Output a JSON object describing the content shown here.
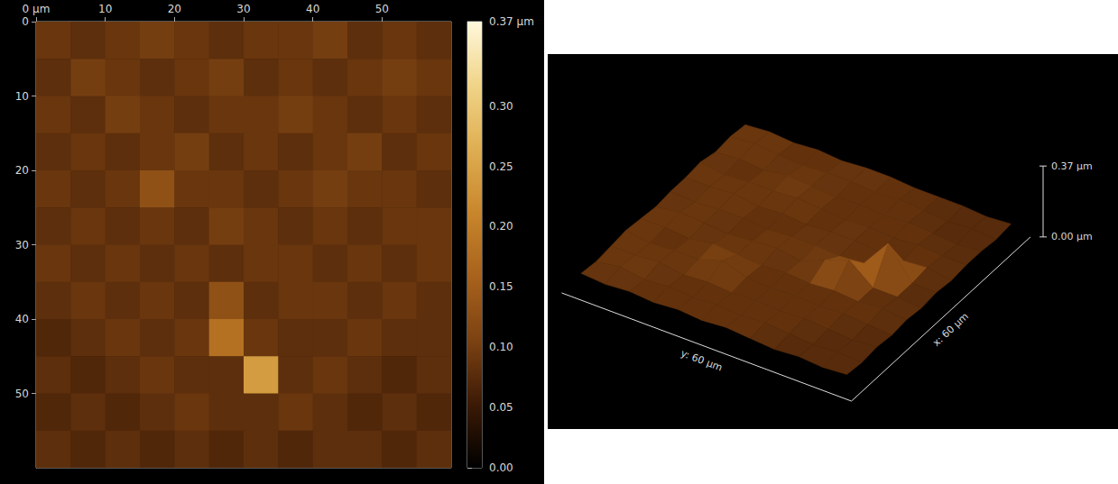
{
  "chart_data": [
    {
      "type": "heatmap",
      "x": [
        2.5,
        7.5,
        12.5,
        17.5,
        22.5,
        27.5,
        32.5,
        37.5,
        42.5,
        47.5,
        52.5,
        57.5
      ],
      "y": [
        2.5,
        7.5,
        12.5,
        17.5,
        22.5,
        27.5,
        32.5,
        37.5,
        42.5,
        47.5,
        52.5,
        57.5
      ],
      "values": [
        [
          0.09,
          0.08,
          0.09,
          0.1,
          0.09,
          0.08,
          0.09,
          0.09,
          0.1,
          0.08,
          0.09,
          0.08
        ],
        [
          0.08,
          0.1,
          0.09,
          0.08,
          0.09,
          0.1,
          0.08,
          0.09,
          0.08,
          0.09,
          0.1,
          0.09
        ],
        [
          0.09,
          0.08,
          0.1,
          0.09,
          0.08,
          0.09,
          0.09,
          0.1,
          0.09,
          0.08,
          0.09,
          0.08
        ],
        [
          0.08,
          0.09,
          0.08,
          0.09,
          0.1,
          0.08,
          0.09,
          0.08,
          0.09,
          0.1,
          0.08,
          0.09
        ],
        [
          0.09,
          0.08,
          0.09,
          0.13,
          0.09,
          0.09,
          0.08,
          0.09,
          0.1,
          0.09,
          0.09,
          0.08
        ],
        [
          0.08,
          0.09,
          0.08,
          0.09,
          0.08,
          0.1,
          0.09,
          0.08,
          0.09,
          0.08,
          0.09,
          0.09
        ],
        [
          0.09,
          0.08,
          0.09,
          0.08,
          0.09,
          0.08,
          0.09,
          0.09,
          0.08,
          0.09,
          0.08,
          0.09
        ],
        [
          0.08,
          0.09,
          0.08,
          0.09,
          0.08,
          0.13,
          0.08,
          0.09,
          0.09,
          0.08,
          0.09,
          0.08
        ],
        [
          0.07,
          0.08,
          0.09,
          0.08,
          0.09,
          0.18,
          0.09,
          0.08,
          0.08,
          0.09,
          0.08,
          0.08
        ],
        [
          0.08,
          0.07,
          0.08,
          0.09,
          0.08,
          0.08,
          0.24,
          0.08,
          0.09,
          0.08,
          0.07,
          0.08
        ],
        [
          0.07,
          0.08,
          0.07,
          0.08,
          0.09,
          0.08,
          0.08,
          0.09,
          0.08,
          0.07,
          0.08,
          0.07
        ],
        [
          0.08,
          0.07,
          0.08,
          0.07,
          0.08,
          0.07,
          0.08,
          0.07,
          0.08,
          0.08,
          0.07,
          0.08
        ]
      ],
      "xlim": [
        0,
        60
      ],
      "ylim": [
        0,
        60
      ],
      "xticks": [
        {
          "value": 0,
          "label": "0 µm"
        },
        10,
        20,
        30,
        40,
        50
      ],
      "yticks": [
        0,
        10,
        20,
        30,
        40,
        50
      ],
      "colorbar_range": [
        0,
        0.37
      ],
      "colorbar_ticks": [
        {
          "value": 0,
          "label": "0.00"
        },
        0.05,
        {
          "value": 0.1,
          "label": "0.10"
        },
        0.15,
        {
          "value": 0.2,
          "label": "0.20"
        },
        0.25,
        {
          "value": 0.3,
          "label": "0.30"
        },
        {
          "value": 0.37,
          "label": "0.37 µm"
        }
      ]
    },
    {
      "type": "surface3d",
      "x": [
        2.5,
        7.5,
        12.5,
        17.5,
        22.5,
        27.5,
        32.5,
        37.5,
        42.5,
        47.5,
        52.5,
        57.5
      ],
      "y": [
        2.5,
        7.5,
        12.5,
        17.5,
        22.5,
        27.5,
        32.5,
        37.5,
        42.5,
        47.5,
        52.5,
        57.5
      ],
      "values": [
        [
          0.09,
          0.08,
          0.09,
          0.1,
          0.09,
          0.08,
          0.09,
          0.09,
          0.1,
          0.08,
          0.09,
          0.08
        ],
        [
          0.08,
          0.1,
          0.09,
          0.08,
          0.09,
          0.1,
          0.08,
          0.09,
          0.08,
          0.09,
          0.1,
          0.09
        ],
        [
          0.09,
          0.08,
          0.1,
          0.09,
          0.08,
          0.09,
          0.09,
          0.1,
          0.09,
          0.08,
          0.09,
          0.08
        ],
        [
          0.08,
          0.09,
          0.08,
          0.09,
          0.1,
          0.08,
          0.09,
          0.08,
          0.09,
          0.1,
          0.08,
          0.09
        ],
        [
          0.09,
          0.08,
          0.09,
          0.13,
          0.09,
          0.09,
          0.08,
          0.09,
          0.1,
          0.09,
          0.09,
          0.08
        ],
        [
          0.08,
          0.09,
          0.08,
          0.09,
          0.08,
          0.1,
          0.09,
          0.08,
          0.09,
          0.08,
          0.09,
          0.09
        ],
        [
          0.09,
          0.08,
          0.09,
          0.08,
          0.09,
          0.08,
          0.09,
          0.09,
          0.08,
          0.09,
          0.08,
          0.09
        ],
        [
          0.08,
          0.09,
          0.08,
          0.09,
          0.08,
          0.13,
          0.08,
          0.09,
          0.09,
          0.08,
          0.09,
          0.08
        ],
        [
          0.07,
          0.08,
          0.09,
          0.08,
          0.09,
          0.18,
          0.09,
          0.08,
          0.08,
          0.09,
          0.08,
          0.08
        ],
        [
          0.08,
          0.07,
          0.08,
          0.09,
          0.08,
          0.08,
          0.24,
          0.08,
          0.09,
          0.08,
          0.07,
          0.08
        ],
        [
          0.07,
          0.08,
          0.07,
          0.08,
          0.09,
          0.08,
          0.08,
          0.09,
          0.08,
          0.07,
          0.08,
          0.07
        ],
        [
          0.08,
          0.07,
          0.08,
          0.07,
          0.08,
          0.07,
          0.08,
          0.07,
          0.08,
          0.08,
          0.07,
          0.08
        ]
      ],
      "xlim": [
        0,
        60
      ],
      "ylim": [
        0,
        60
      ],
      "zlim": [
        0,
        0.37
      ],
      "zticks": [
        {
          "value": 0,
          "label": "0.00 µm"
        },
        {
          "value": 0.37,
          "label": "0.37 µm"
        }
      ],
      "xlabel": "x: 60 µm",
      "ylabel": "y: 60 µm"
    }
  ]
}
